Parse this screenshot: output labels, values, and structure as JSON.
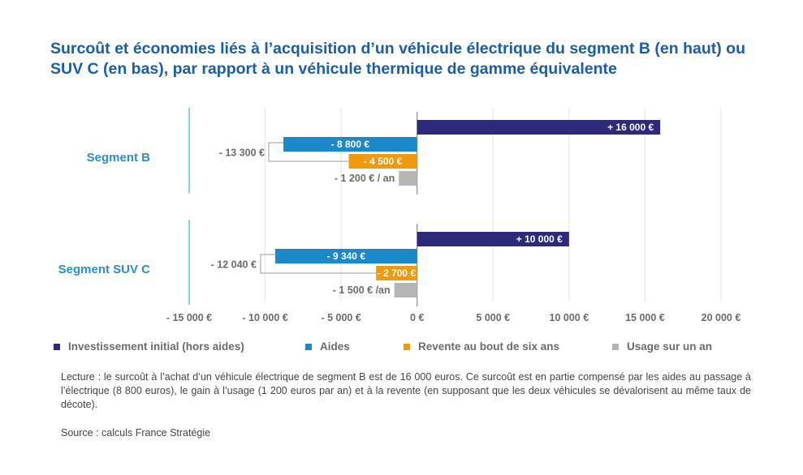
{
  "title": "Surcoût et économies liés à l’acquisition d’un véhicule électrique du segment B (en haut) ou SUV C (en bas), par rapport à un véhicule thermique de gamme équivalente",
  "chart_data": {
    "type": "bar",
    "orientation": "horizontal",
    "xlim": [
      -15000,
      20000
    ],
    "x_ticks": [
      -15000,
      -10000,
      -5000,
      0,
      5000,
      10000,
      15000,
      20000
    ],
    "x_tick_labels": [
      "- 15 000 €",
      "- 10 000 €",
      "- 5 000 €",
      "0 €",
      "5 000 €",
      "10 000 €",
      "15 000 €",
      "20 000 €"
    ],
    "grid": true,
    "legend_position": "bottom",
    "series": [
      {
        "name": "Investissement initial (hors aides)",
        "color": "#2d2a7c"
      },
      {
        "name": "Aides",
        "color": "#1a88c9"
      },
      {
        "name": "Revente au bout de six ans",
        "color": "#f0980e"
      },
      {
        "name": "Usage sur un an",
        "color": "#b5b5b5"
      }
    ],
    "groups": [
      {
        "name": "Segment B",
        "total_savings_label": "- 13 300 €",
        "bars": [
          {
            "series": 0,
            "value": 16000,
            "label": "+ 16 000 €"
          },
          {
            "series": 1,
            "value": -8800,
            "label": "- 8 800 €"
          },
          {
            "series": 2,
            "value": -4500,
            "label": "- 4 500 €"
          },
          {
            "series": 3,
            "value": -1200,
            "label": "- 1 200 € / an"
          }
        ]
      },
      {
        "name": "Segment SUV C",
        "total_savings_label": "- 12 040 €",
        "bars": [
          {
            "series": 0,
            "value": 10000,
            "label": "+ 10 000 €"
          },
          {
            "series": 1,
            "value": -9340,
            "label": "- 9 340 €"
          },
          {
            "series": 2,
            "value": -2700,
            "label": "- 2 700 €"
          },
          {
            "series": 3,
            "value": -1500,
            "label": "- 1 500 € /an"
          }
        ]
      }
    ]
  },
  "reading": "Lecture : le surcoût à l’achat d’un véhicule électrique de segment B est de 16 000 euros. Ce surcoût est en partie compensé par les aides au passage à l’électrique (8 800 euros), le gain à l’usage (1 200 euros par an) et à la revente (en supposant que les deux véhicules se dévalorisent au même taux de décote).",
  "source": "Source : calculs France Stratégie"
}
